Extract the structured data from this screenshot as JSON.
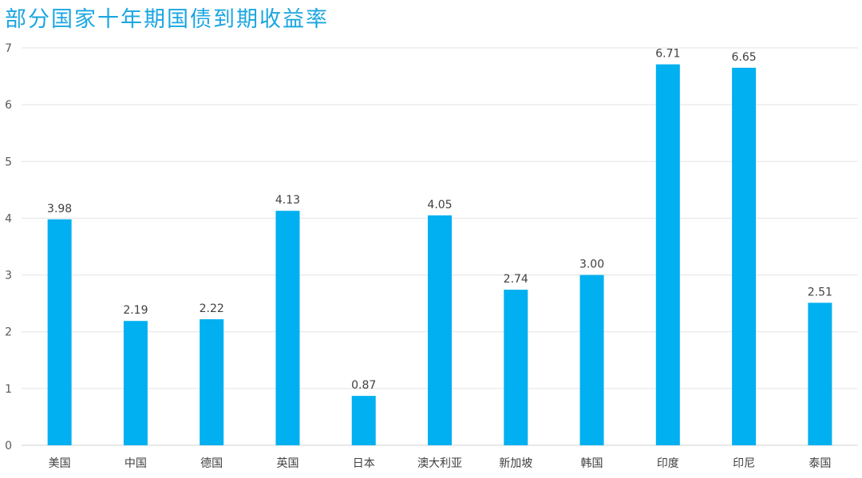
{
  "chart_data": {
    "type": "bar",
    "title": "部分国家十年期国债到期收益率",
    "categories": [
      "美国",
      "中国",
      "德国",
      "英国",
      "日本",
      "澳大利亚",
      "新加坡",
      "韩国",
      "印度",
      "印尼",
      "泰国"
    ],
    "values": [
      3.98,
      2.19,
      2.22,
      4.13,
      0.87,
      4.05,
      2.74,
      3.0,
      6.71,
      6.65,
      2.51
    ],
    "data_labels": [
      "3.98",
      "2.19",
      "2.22",
      "4.13",
      "0.87",
      "4.05",
      "2.74",
      "3.00",
      "6.71",
      "6.65",
      "2.51"
    ],
    "yticks": [
      "0",
      "1",
      "2",
      "3",
      "4",
      "5",
      "6",
      "7"
    ],
    "ylim": [
      0,
      7
    ],
    "grid": true,
    "legend": false,
    "bar_color": "#00b0f0",
    "title_color": "#1aa6e0"
  }
}
